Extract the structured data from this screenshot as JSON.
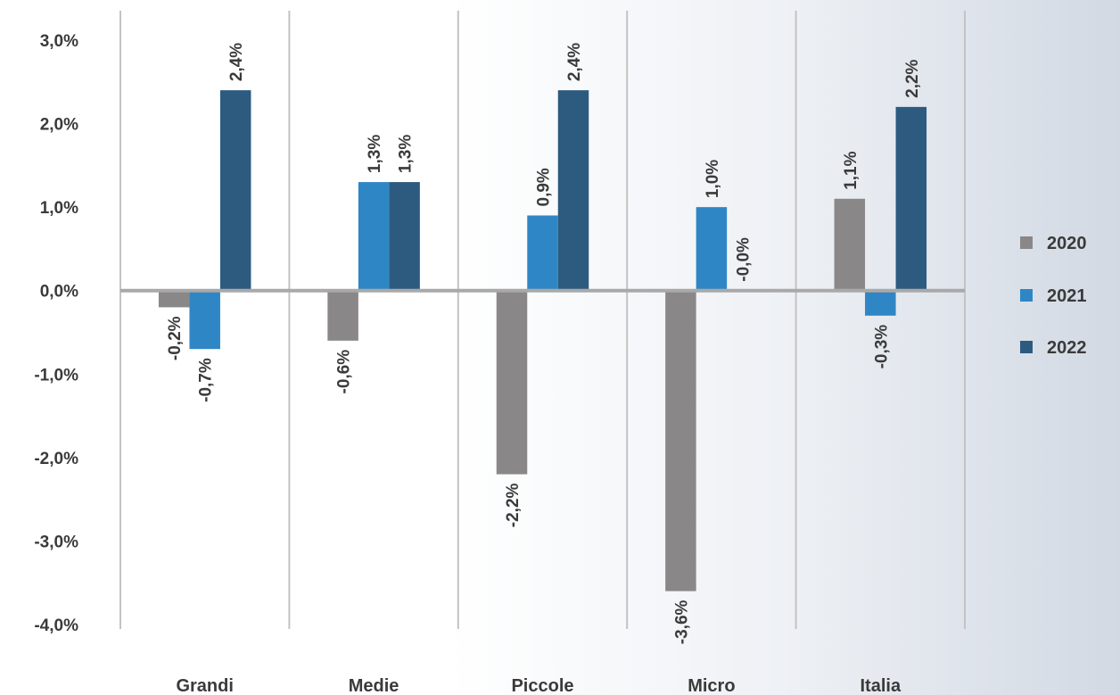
{
  "chart_data": {
    "type": "bar",
    "categories": [
      "Grandi",
      "Medie",
      "Piccole",
      "Micro",
      "Italia"
    ],
    "series": [
      {
        "name": "2020",
        "color": "#8a8789",
        "values": [
          -0.2,
          -0.6,
          -2.2,
          -3.6,
          1.1
        ],
        "labels": [
          "-0,2%",
          "-0,6%",
          "-2,2%",
          "-3,6%",
          "1,1%"
        ]
      },
      {
        "name": "2021",
        "color": "#2f86c5",
        "values": [
          -0.7,
          1.3,
          0.9,
          1.0,
          -0.3
        ],
        "labels": [
          "-0,7%",
          "1,3%",
          "0,9%",
          "1,0%",
          "-0,3%"
        ]
      },
      {
        "name": "2022",
        "color": "#2d5b80",
        "values": [
          2.4,
          1.3,
          2.4,
          0.0,
          2.2
        ],
        "labels": [
          "2,4%",
          "1,3%",
          "2,4%",
          "-0,0%",
          "2,2%"
        ]
      }
    ],
    "yticks": [
      {
        "value": 3.0,
        "label": "3,0%"
      },
      {
        "value": 2.0,
        "label": "2,0%"
      },
      {
        "value": 1.0,
        "label": "1,0%"
      },
      {
        "value": 0.0,
        "label": "0,0%"
      },
      {
        "value": -1.0,
        "label": "-1,0%"
      },
      {
        "value": -2.0,
        "label": "-2,0%"
      },
      {
        "value": -3.0,
        "label": "-3,0%"
      },
      {
        "value": -4.0,
        "label": "-4,0%"
      }
    ],
    "ylim": [
      -4,
      3
    ],
    "title": "",
    "xlabel": "",
    "ylabel": "",
    "grid": "vertical category separators",
    "legend_position": "right"
  }
}
